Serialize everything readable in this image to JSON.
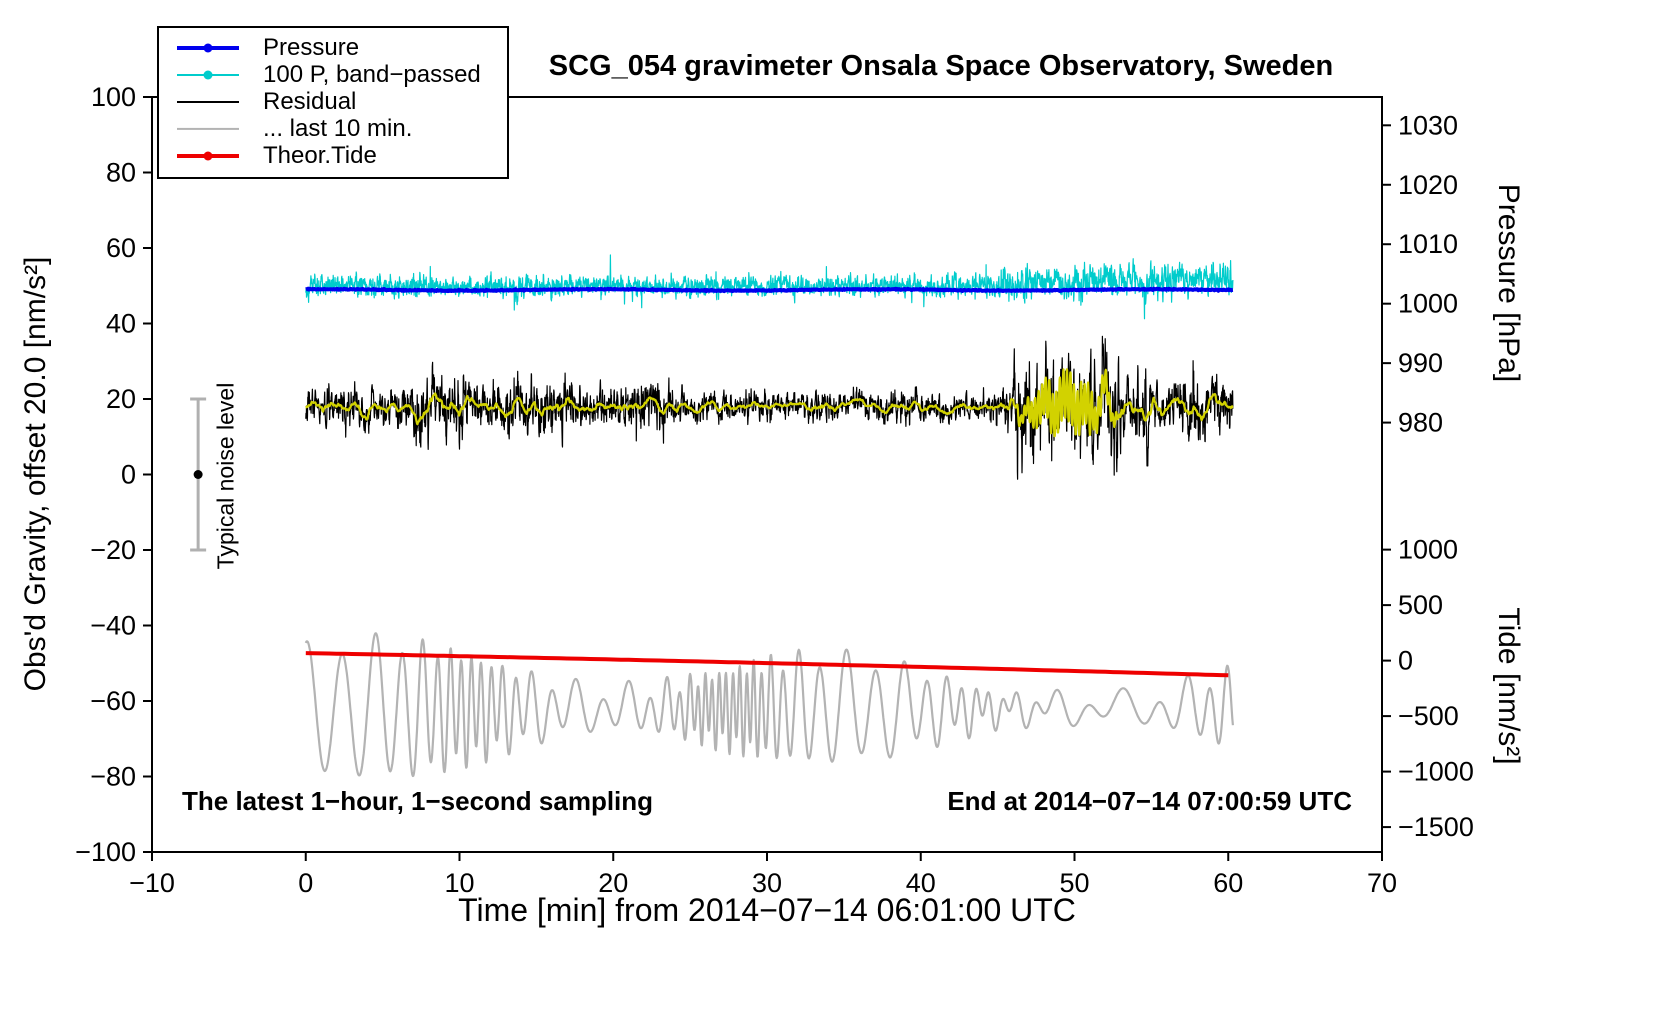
{
  "chart_data": {
    "type": "line",
    "title": "SCG_054 gravimeter Onsala Space Observatory, Sweden",
    "xlabel": "Time [min] from 2014−07−14 06:01:00 UTC",
    "x_axis": {
      "min": -10,
      "max": 70,
      "ticks": [
        -10,
        0,
        10,
        20,
        30,
        40,
        50,
        60,
        70
      ],
      "data_start": 0,
      "data_end": 60.3
    },
    "left_axis": {
      "label": "Obs'd Gravity, offset 20.0 [nm/s²]",
      "min": -100,
      "max": 100,
      "ticks": [
        100,
        80,
        60,
        40,
        20,
        0,
        -20,
        -40,
        -60,
        -80,
        -100
      ]
    },
    "right_axis_pressure": {
      "label": "Pressure [hPa]",
      "ticks": [
        1030,
        1020,
        1010,
        1000,
        990,
        980
      ],
      "gravity_at_980": 13.75,
      "gravity_per_hpa": 1.575
    },
    "right_axis_tide": {
      "label": "Tide [nm/s²]",
      "ticks": [
        1000,
        500,
        0,
        -500,
        -1000,
        -1500
      ],
      "gravity_at_zero": -49.3,
      "gravity_per_unit": 0.0294
    },
    "legend": {
      "position": "top-left"
    },
    "series": [
      {
        "id": "pressure",
        "name": "Pressure",
        "color": "#0000ee",
        "line_width": 4,
        "legend_marker": "line-dot",
        "axis": "pressure",
        "gravity_level": 48.9,
        "approx_value_hpa": 1002.3,
        "variation": 0.3
      },
      {
        "id": "pressure-band-passed",
        "name": "100 P, band−passed",
        "color": "#00cccc",
        "line_width": 1.2,
        "legend_marker": "line-dot",
        "gravity_mean": 49.9,
        "noise_sd": 1.8,
        "rise_after_min": 42,
        "rise_rate": 0.13
      },
      {
        "id": "residual",
        "name": "Residual",
        "color": "#000000",
        "line_width": 1.2,
        "legend_marker": "line",
        "gravity_mean": 18,
        "amplitude_profile": [
          [
            0,
            2.0
          ],
          [
            1.2,
            2.6
          ],
          [
            7,
            4.6
          ],
          [
            10.5,
            2.8
          ],
          [
            12,
            3.8
          ],
          [
            17,
            3.0
          ],
          [
            24,
            2.0
          ],
          [
            44.5,
            2.8
          ],
          [
            46,
            6.8
          ],
          [
            53,
            3.2
          ],
          [
            53.8,
            5.5
          ],
          [
            54.9,
            3.2
          ],
          [
            56.8,
            5.0
          ],
          [
            58.6,
            3.4
          ]
        ]
      },
      {
        "id": "residual-last-10-min",
        "name": "... last 10 min.",
        "color": "#b3b3b3",
        "line_width": 2.2,
        "legend_marker": "line",
        "gravity_mean": -62,
        "amp_min": 3,
        "amp_max": 18
      },
      {
        "id": "theoretical-tide",
        "name": "Theor.Tide",
        "color": "#ee0000",
        "line_width": 4,
        "legend_marker": "line-dot",
        "axis": "tide",
        "tide_start": 65,
        "tide_end": -130,
        "gravity_start": -47.3,
        "gravity_end": -53.2
      },
      {
        "id": "residual-filtered",
        "name": "",
        "in_legend": false,
        "color": "#d2d200",
        "line_width": 2.2,
        "gravity_mean": 18,
        "burst": {
          "start": 46,
          "end": 53,
          "amplitude": 6.5,
          "period_min": 0.23
        }
      }
    ],
    "noise_bar": {
      "x": -7,
      "center_gravity": 0,
      "half_range_gravity": 20,
      "label": "Typical noise level"
    },
    "annotations": {
      "bottom_left": "The latest 1−hour, 1−second sampling",
      "bottom_right": "End at 2014−07−14 07:00:59 UTC"
    }
  }
}
